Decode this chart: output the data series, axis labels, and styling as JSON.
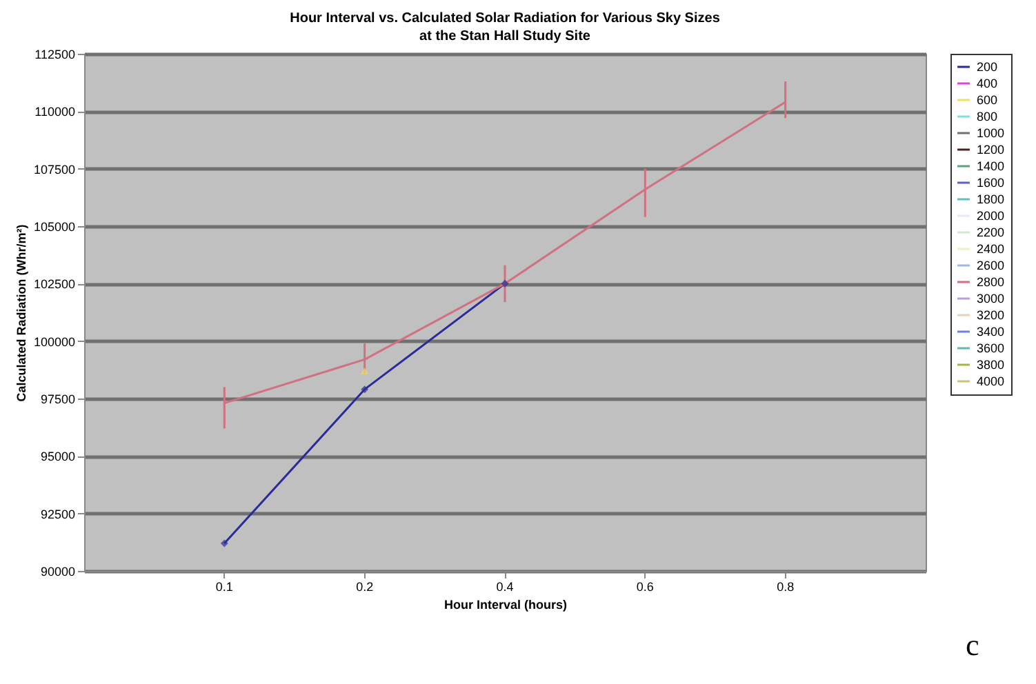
{
  "chart_data": {
    "type": "line",
    "title": "Hour Interval vs. Calculated Solar Radiation for Various Sky Sizes",
    "subtitle": "at the Stan Hall Study Site",
    "xlabel": "Hour Interval (hours)",
    "ylabel": "Calculated Radiation (Whr/m²)",
    "categories": [
      "0.1",
      "0.2",
      "0.4",
      "0.6",
      "0.8"
    ],
    "ylim": [
      90000,
      112500
    ],
    "yticks": [
      90000,
      92500,
      95000,
      97500,
      100000,
      102500,
      105000,
      107500,
      110000,
      112500
    ],
    "grid": "y",
    "legend": "right",
    "annotations": [
      "c"
    ],
    "series": [
      {
        "name": "200",
        "color": "#2a2a9a",
        "marker": "diamond",
        "values": [
          91200,
          97900,
          102500,
          null,
          null
        ]
      },
      {
        "name": "400",
        "color": "#e040e0",
        "values": [
          null,
          null,
          null,
          null,
          null
        ]
      },
      {
        "name": "600",
        "color": "#f0e060",
        "marker": "triangle",
        "values": [
          null,
          98700,
          null,
          null,
          null
        ]
      },
      {
        "name": "800",
        "color": "#80e0e0",
        "values": [
          null,
          null,
          null,
          null,
          null
        ]
      },
      {
        "name": "1000",
        "color": "#707070",
        "values": [
          null,
          null,
          null,
          null,
          null
        ]
      },
      {
        "name": "1200",
        "color": "#502020",
        "values": [
          null,
          null,
          null,
          null,
          null
        ]
      },
      {
        "name": "1400",
        "color": "#60a080",
        "values": [
          null,
          null,
          null,
          null,
          null
        ]
      },
      {
        "name": "1600",
        "color": "#6060c0",
        "values": [
          null,
          null,
          null,
          null,
          null
        ]
      },
      {
        "name": "1800",
        "color": "#60c0c0",
        "values": [
          null,
          null,
          null,
          null,
          null
        ]
      },
      {
        "name": "2000",
        "color": "#e8e8f8",
        "values": [
          null,
          null,
          null,
          null,
          null
        ]
      },
      {
        "name": "2200",
        "color": "#d0e8d0",
        "values": [
          null,
          null,
          null,
          null,
          null
        ]
      },
      {
        "name": "2400",
        "color": "#f0f0c0",
        "values": [
          null,
          null,
          null,
          null,
          null
        ]
      },
      {
        "name": "2600",
        "color": "#a0b8e0",
        "values": [
          null,
          null,
          null,
          null,
          null
        ]
      },
      {
        "name": "2800",
        "color": "#d07080",
        "values": [
          97300,
          99200,
          102500,
          106600,
          110400
        ],
        "errors": [
          [
            96200,
            98000
          ],
          [
            98600,
            99900
          ],
          [
            101700,
            103300
          ],
          [
            105400,
            107500
          ],
          [
            109700,
            111300
          ]
        ]
      },
      {
        "name": "3000",
        "color": "#b8a0d8",
        "values": [
          null,
          null,
          null,
          null,
          null
        ]
      },
      {
        "name": "3200",
        "color": "#e8d0b8",
        "values": [
          null,
          null,
          null,
          null,
          null
        ]
      },
      {
        "name": "3400",
        "color": "#7080e0",
        "values": [
          null,
          null,
          null,
          null,
          null
        ]
      },
      {
        "name": "3600",
        "color": "#60b8b8",
        "values": [
          null,
          null,
          null,
          null,
          null
        ]
      },
      {
        "name": "3800",
        "color": "#a0b840",
        "values": [
          null,
          null,
          null,
          null,
          null
        ]
      },
      {
        "name": "4000",
        "color": "#d0c070",
        "values": [
          null,
          null,
          null,
          null,
          null
        ]
      }
    ]
  }
}
